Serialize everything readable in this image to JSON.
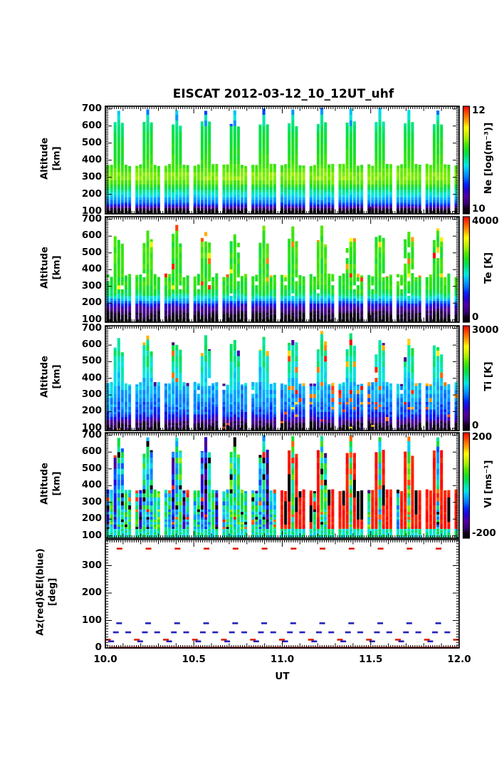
{
  "title": "EISCAT 2012-03-12_10_12UT_uhf",
  "chart_data": {
    "type": "heatmap",
    "x_axis": {
      "label": "UT",
      "range": [
        10.0,
        12.0
      ],
      "ticks": [
        "10.0",
        "10.5",
        "11.0",
        "11.5",
        "12.0"
      ],
      "tick_values": [
        10.0,
        10.5,
        11.0,
        11.5,
        12.0
      ]
    },
    "scan": {
      "start": 10.006,
      "slot_width": 0.0205,
      "period": 0.164,
      "cycles": 13,
      "pattern": [
        "s",
        "s",
        "t",
        "T",
        "t",
        "s",
        "s"
      ],
      "elevation_of_type": {
        "s": 30,
        "t": 60,
        "T": 90
      }
    },
    "palette": {
      "stops": [
        [
          0.0,
          "#000000"
        ],
        [
          0.05,
          "#14001e"
        ],
        [
          0.1,
          "#3c0078"
        ],
        [
          0.16,
          "#5000a0"
        ],
        [
          0.22,
          "#2800d2"
        ],
        [
          0.28,
          "#0028ff"
        ],
        [
          0.34,
          "#0078ff"
        ],
        [
          0.4,
          "#00b4ff"
        ],
        [
          0.45,
          "#00e6e6"
        ],
        [
          0.5,
          "#00e6a0"
        ],
        [
          0.55,
          "#00e050"
        ],
        [
          0.6,
          "#20e020"
        ],
        [
          0.65,
          "#50e800"
        ],
        [
          0.7,
          "#a0f000"
        ],
        [
          0.75,
          "#d8f000"
        ],
        [
          0.8,
          "#ffff00"
        ],
        [
          0.85,
          "#ffb400"
        ],
        [
          0.9,
          "#ff7800"
        ],
        [
          0.95,
          "#ff3c00"
        ],
        [
          1.0,
          "#ff0000"
        ]
      ]
    },
    "panels": [
      {
        "id": "ne",
        "kind": "columns",
        "ylabel": [
          "Altitude",
          "[km]"
        ],
        "yticks": [
          700,
          600,
          500,
          400,
          300,
          200,
          100
        ],
        "yrange": [
          86,
          716
        ],
        "colorbar": {
          "title": "Ne [log(m⁻³)]",
          "top": "12",
          "bottom": "10",
          "range": [
            10,
            12
          ]
        },
        "seed": 11,
        "profile": [
          [
            88,
            0.02
          ],
          [
            108,
            0.03
          ],
          [
            122,
            0.12
          ],
          [
            132,
            0.22
          ],
          [
            142,
            0.3
          ],
          [
            155,
            0.34
          ],
          [
            172,
            0.38
          ],
          [
            188,
            0.43
          ],
          [
            205,
            0.47
          ],
          [
            225,
            0.52
          ],
          [
            245,
            0.58
          ],
          [
            262,
            0.64
          ],
          [
            285,
            0.68
          ],
          [
            310,
            0.69
          ],
          [
            335,
            0.66
          ],
          [
            365,
            0.63
          ],
          [
            430,
            0.6
          ],
          [
            500,
            0.58
          ],
          [
            555,
            0.56
          ],
          [
            600,
            0.53
          ],
          [
            645,
            0.48
          ],
          [
            680,
            0.44
          ],
          [
            716,
            0.42
          ]
        ],
        "noise": {
          "cell": 0.018,
          "column": 0.012
        },
        "heights": {
          "s": [
            372,
            7
          ],
          "t": [
            612,
            16
          ],
          "T": [
            696,
            10
          ]
        },
        "features": {
          "cap_blue": 0.55,
          "cap_blue2": 0.3,
          "deep_blue": 0.02
        }
      },
      {
        "id": "te",
        "kind": "columns",
        "ylabel": [
          "Altitude",
          "[km]"
        ],
        "yticks": [
          700,
          600,
          500,
          400,
          300,
          200,
          100
        ],
        "yrange": [
          86,
          716
        ],
        "colorbar": {
          "title": "Te [K]",
          "top": "4000",
          "bottom": "0",
          "range": [
            0,
            4000
          ]
        },
        "seed": 22,
        "profile": [
          [
            88,
            0.02
          ],
          [
            120,
            0.04
          ],
          [
            145,
            0.08
          ],
          [
            165,
            0.14
          ],
          [
            185,
            0.22
          ],
          [
            200,
            0.3
          ],
          [
            212,
            0.36
          ],
          [
            224,
            0.42
          ],
          [
            238,
            0.48
          ],
          [
            252,
            0.53
          ],
          [
            270,
            0.57
          ],
          [
            300,
            0.6
          ],
          [
            360,
            0.61
          ],
          [
            450,
            0.62
          ],
          [
            560,
            0.62
          ],
          [
            716,
            0.63
          ]
        ],
        "noise": {
          "cell": 0.035,
          "column": 0.02
        },
        "heights": {
          "s": [
            368,
            12
          ],
          "t": [
            585,
            35
          ],
          "T": [
            645,
            25
          ]
        },
        "features": {
          "hot_hi": 0.07,
          "hot_hi_post": 0.1,
          "hot_mid": 0.025,
          "hot_top": 0.15,
          "gap": 0.035
        }
      },
      {
        "id": "ti",
        "kind": "columns",
        "ylabel": [
          "Altitude",
          "[km]"
        ],
        "yticks": [
          700,
          600,
          500,
          400,
          300,
          200,
          100
        ],
        "yrange": [
          86,
          716
        ],
        "colorbar": {
          "title": "Ti [K]",
          "top": "3000",
          "bottom": "0",
          "range": [
            0,
            3000
          ]
        },
        "seed": 33,
        "profile": [
          [
            88,
            0.04
          ],
          [
            115,
            0.06
          ],
          [
            135,
            0.1
          ],
          [
            150,
            0.17
          ],
          [
            165,
            0.24
          ],
          [
            185,
            0.29
          ],
          [
            215,
            0.33
          ],
          [
            260,
            0.36
          ],
          [
            320,
            0.39
          ],
          [
            380,
            0.42
          ],
          [
            440,
            0.46
          ],
          [
            520,
            0.5
          ],
          [
            600,
            0.52
          ],
          [
            716,
            0.52
          ]
        ],
        "noise": {
          "cell": 0.045,
          "column": 0.03
        },
        "heights": {
          "s": [
            370,
            9
          ],
          "t": [
            592,
            30
          ],
          "T": [
            662,
            24
          ]
        },
        "features": {
          "hot_pre": 0.05,
          "hot_post": 0.1,
          "dark_top": 0.1,
          "hot_top": 0.1,
          "gap": 0.02
        }
      },
      {
        "id": "vi",
        "kind": "columns",
        "ylabel": [
          "Altitude",
          "[km]"
        ],
        "yticks": [
          700,
          600,
          500,
          400,
          300,
          200,
          100
        ],
        "yrange": [
          86,
          716
        ],
        "colorbar": {
          "title": "Vi [ms⁻¹]",
          "top": "200",
          "bottom": "-200",
          "range": [
            -200,
            200
          ]
        },
        "seed": 44,
        "profile": [],
        "noise": {
          "cell": 0.1,
          "column": 0.05
        },
        "heights": {
          "s": [
            372,
            6
          ],
          "t": [
            600,
            22
          ],
          "T": [
            694,
            10
          ]
        },
        "features": {
          "red_after": 10.97,
          "red_col": 0.85,
          "black_run": 0.35,
          "blue_col_pre": 0.35,
          "special_red": 0.06,
          "special_black": 0.05,
          "cap": 0.25
        }
      },
      {
        "id": "azel",
        "kind": "marks",
        "ylabel": [
          "Az(red)&El(blue)",
          "[deg]"
        ],
        "yticks": [
          300,
          200,
          100,
          0
        ],
        "yrange": [
          0,
          395
        ],
        "marks": {
          "az_color": "#dd1c00",
          "el_color": "#2222bb",
          "az": [
            {
              "slot": 3.6,
              "deg": 362
            },
            {
              "slot": 0.4,
              "deg": 30
            },
            {
              "slot": 0.2,
              "deg": 1
            },
            {
              "slot": 1.6,
              "deg": 1
            },
            {
              "slot": 3.0,
              "deg": 1
            },
            {
              "slot": 4.4,
              "deg": 1
            },
            {
              "slot": 5.8,
              "deg": 1
            },
            {
              "slot": 7.2,
              "deg": 1
            }
          ],
          "el": [
            {
              "slot": 3.5,
              "deg": 90
            },
            {
              "slot": 2.6,
              "deg": 57
            },
            {
              "slot": 6.0,
              "deg": 57
            },
            {
              "slot": 1.3,
              "deg": 24
            }
          ]
        }
      }
    ]
  }
}
